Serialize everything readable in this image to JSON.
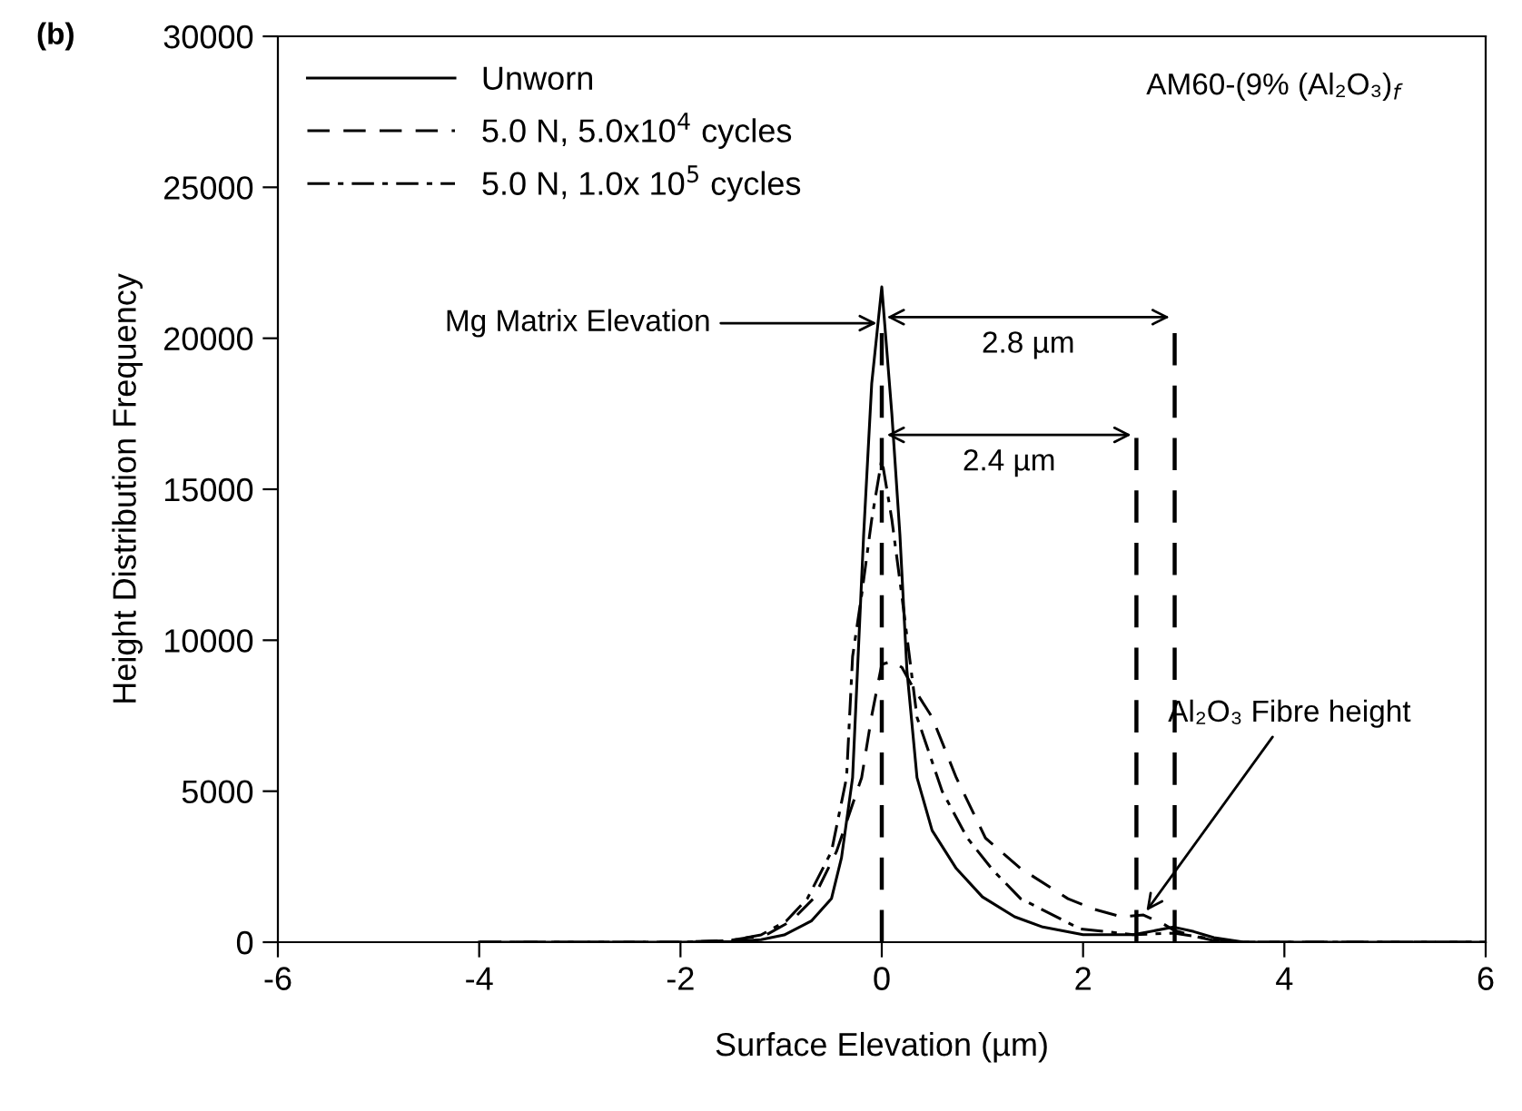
{
  "chart_data": {
    "type": "line",
    "xlabel": "Surface Elevation (µm)",
    "ylabel": "Height Distribution Frequency",
    "xlim": [
      -6,
      6
    ],
    "xticks": [
      -6,
      -4,
      -2,
      0,
      2,
      4,
      6
    ],
    "ylim": [
      0,
      30000
    ],
    "yticks": [
      0,
      5000,
      10000,
      15000,
      20000,
      25000,
      30000
    ],
    "grid": false,
    "legend": "top left",
    "marker": "none",
    "series": [
      {
        "name": "Unworn",
        "color": "#000000",
        "line_style": "solid",
        "x": [
          -4,
          -2,
          -1.5,
          -1.2,
          -0.97,
          -0.7,
          -0.5,
          -0.4,
          -0.29,
          -0.18,
          -0.1,
          0,
          0.1,
          0.18,
          0.25,
          0.35,
          0.5,
          0.74,
          1.0,
          1.32,
          1.6,
          2.0,
          2.5,
          2.9,
          3.1,
          3.3,
          3.6,
          4,
          6
        ],
        "values": [
          0,
          0,
          20,
          80,
          240,
          700,
          1440,
          2800,
          5450,
          13500,
          18500,
          21700,
          17500,
          13500,
          9000,
          5450,
          3700,
          2440,
          1500,
          840,
          500,
          250,
          250,
          500,
          350,
          150,
          0,
          0,
          0
        ]
      },
      {
        "name": "5.0 N, 5.0x10$^{4}$ cycles",
        "color": "#000000",
        "line_style": "dashed",
        "x": [
          -4,
          -2,
          -1.5,
          -1.15,
          -0.9,
          -0.68,
          -0.45,
          -0.2,
          -0.1,
          0,
          0.1,
          0.2,
          0.3,
          0.5,
          0.74,
          1.03,
          1.38,
          1.85,
          2.1,
          2.38,
          2.6,
          2.8,
          2.9,
          3.1,
          3.3,
          3.6,
          4,
          6
        ],
        "values": [
          0,
          0,
          60,
          240,
          700,
          1440,
          3000,
          5450,
          7500,
          9200,
          9300,
          9100,
          8500,
          7450,
          5450,
          3450,
          2440,
          1440,
          1100,
          840,
          900,
          600,
          400,
          200,
          50,
          0,
          0,
          0
        ]
      },
      {
        "name": "5.0 N, 1.0x 10$^{5}$ cycles",
        "color": "#000000",
        "line_style": "dashdot",
        "x": [
          -4,
          -2,
          -1.5,
          -1.2,
          -0.95,
          -0.74,
          -0.5,
          -0.35,
          -0.29,
          -0.2,
          -0.1,
          0,
          0.1,
          0.2,
          0.35,
          0.6,
          0.85,
          1.1,
          1.38,
          1.97,
          2.5,
          2.9,
          3.3,
          3.6,
          4,
          6
        ],
        "values": [
          0,
          0,
          50,
          240,
          700,
          1440,
          3000,
          5450,
          9460,
          11500,
          14000,
          16000,
          14000,
          11460,
          7450,
          5000,
          3450,
          2400,
          1440,
          440,
          250,
          300,
          100,
          0,
          0,
          0
        ]
      }
    ],
    "ref_lines": [
      {
        "axis": "x",
        "value": 0,
        "line_style": "dashed",
        "color": "#000000"
      },
      {
        "axis": "x",
        "value": 2.53,
        "line_style": "dashed",
        "color": "#000000"
      },
      {
        "axis": "x",
        "value": 2.91,
        "line_style": "dashed",
        "color": "#000000"
      }
    ],
    "annotations": [
      {
        "text": "Mg Matrix Elevation",
        "x": 0,
        "y": 20500
      },
      "2.4 µm",
      "2.8 µm",
      {
        "text": "Al₂O₃ Fibre height",
        "x": 2.6,
        "y": 900
      },
      "AM60-(9% (Al₂O₃)$_{f}$",
      "(b)"
    ]
  }
}
